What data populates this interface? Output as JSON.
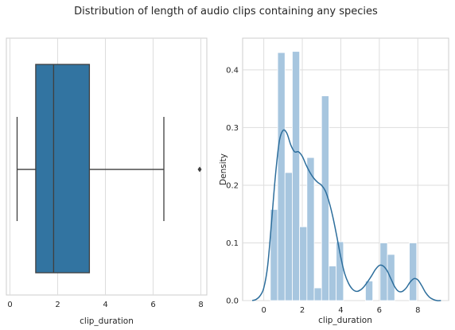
{
  "chart_data": [
    {
      "type": "box",
      "title": "Distribution of length of audio clips containing any species",
      "xlabel": "clip_duration",
      "ylabel": "",
      "xlim": [
        -0.15,
        8.25
      ],
      "xticks": [
        0,
        2,
        4,
        6,
        8
      ],
      "grid": true,
      "box": {
        "whisker_low": 0.3,
        "q1": 1.08,
        "median": 1.83,
        "q3": 3.33,
        "whisker_high": 6.45,
        "outliers": [
          7.95
        ]
      },
      "colors": {
        "box": "#3274a1",
        "line": "#3f3f3f",
        "grid": "#dddddd",
        "spine": "#cccccc"
      }
    },
    {
      "type": "histogram",
      "xlabel": "clip_duration",
      "ylabel": "Density",
      "xlim": [
        -1.1,
        9.6
      ],
      "ylim": [
        0,
        0.455
      ],
      "xticks": [
        0,
        2,
        4,
        6,
        8
      ],
      "yticks": [
        0.0,
        0.1,
        0.2,
        0.3,
        0.4
      ],
      "grid": true,
      "bins": [
        {
          "x0": 0.34,
          "x1": 0.72,
          "density": 0.158
        },
        {
          "x0": 0.72,
          "x1": 1.1,
          "density": 0.43
        },
        {
          "x0": 1.1,
          "x1": 1.48,
          "density": 0.222
        },
        {
          "x0": 1.48,
          "x1": 1.86,
          "density": 0.432
        },
        {
          "x0": 1.86,
          "x1": 2.24,
          "density": 0.128
        },
        {
          "x0": 2.24,
          "x1": 2.62,
          "density": 0.248
        },
        {
          "x0": 2.62,
          "x1": 3.0,
          "density": 0.022
        },
        {
          "x0": 3.0,
          "x1": 3.38,
          "density": 0.355
        },
        {
          "x0": 3.38,
          "x1": 3.76,
          "density": 0.06
        },
        {
          "x0": 3.76,
          "x1": 4.14,
          "density": 0.102
        },
        {
          "x0": 5.28,
          "x1": 5.66,
          "density": 0.034
        },
        {
          "x0": 6.04,
          "x1": 6.42,
          "density": 0.1
        },
        {
          "x0": 6.42,
          "x1": 6.8,
          "density": 0.08
        },
        {
          "x0": 7.56,
          "x1": 7.94,
          "density": 0.1
        }
      ],
      "kde": {
        "x": [
          -0.6,
          -0.4,
          -0.2,
          0.0,
          0.2,
          0.4,
          0.6,
          0.8,
          1.0,
          1.2,
          1.4,
          1.6,
          1.8,
          2.0,
          2.2,
          2.4,
          2.6,
          2.8,
          3.0,
          3.2,
          3.4,
          3.6,
          3.8,
          4.0,
          4.2,
          4.4,
          4.6,
          4.8,
          5.0,
          5.2,
          5.4,
          5.6,
          5.8,
          6.0,
          6.2,
          6.4,
          6.6,
          6.8,
          7.0,
          7.2,
          7.4,
          7.6,
          7.8,
          8.0,
          8.2,
          8.4,
          8.6,
          8.8,
          9.0,
          9.2
        ],
        "y": [
          0.0,
          0.002,
          0.008,
          0.022,
          0.06,
          0.135,
          0.215,
          0.275,
          0.295,
          0.29,
          0.27,
          0.258,
          0.258,
          0.25,
          0.235,
          0.222,
          0.212,
          0.205,
          0.2,
          0.19,
          0.17,
          0.143,
          0.11,
          0.075,
          0.047,
          0.03,
          0.02,
          0.016,
          0.018,
          0.024,
          0.033,
          0.043,
          0.054,
          0.061,
          0.06,
          0.052,
          0.038,
          0.024,
          0.016,
          0.016,
          0.022,
          0.032,
          0.038,
          0.036,
          0.026,
          0.014,
          0.006,
          0.002,
          0.0,
          0.0
        ]
      },
      "colors": {
        "bar": "#a7c6df",
        "line": "#2d6e9c",
        "grid": "#dddddd",
        "spine": "#cccccc"
      }
    }
  ]
}
